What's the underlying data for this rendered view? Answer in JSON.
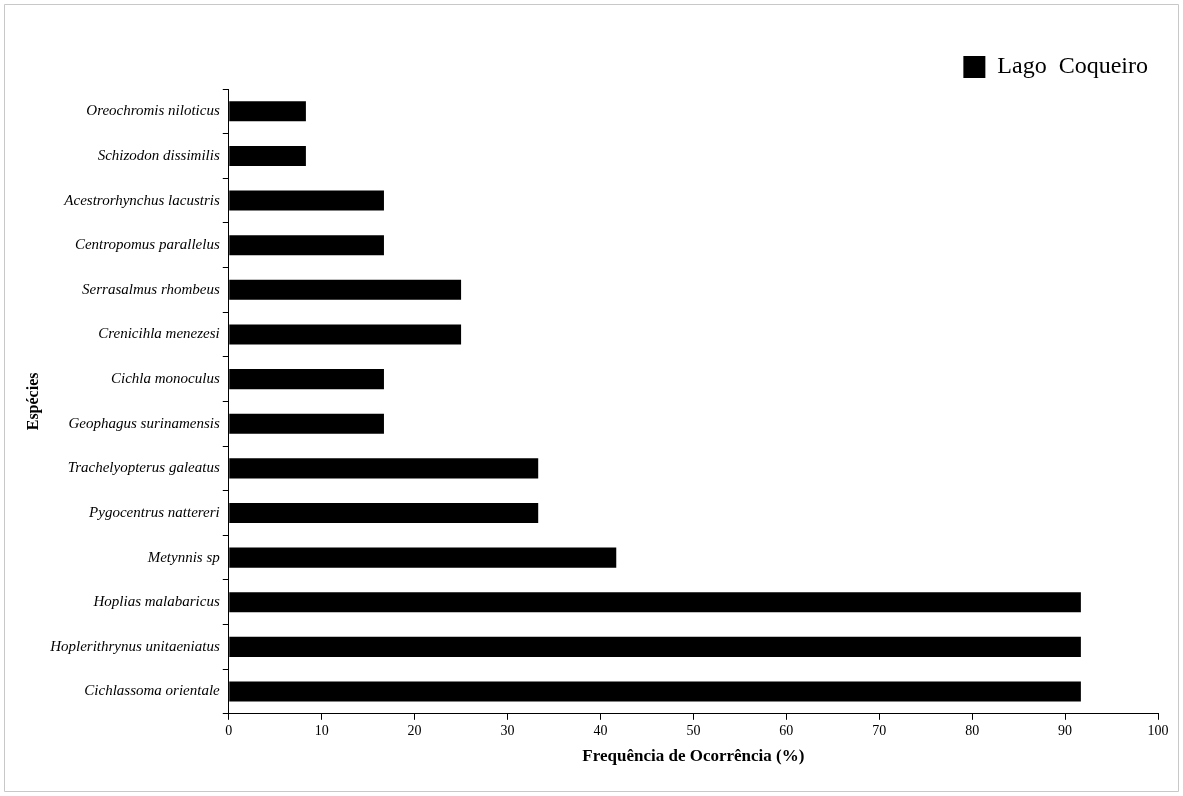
{
  "chart_data": {
    "type": "bar",
    "orientation": "horizontal",
    "categories": [
      "Oreochromis niloticus",
      "Schizodon dissimilis",
      "Acestrorhynchus lacustris",
      "Centropomus parallelus",
      "Serrasalmus rhombeus",
      "Crenicihla menezesi",
      "Cichla monoculus",
      "Geophagus surinamensis",
      "Trachelyopterus galeatus",
      "Pygocentrus nattereri",
      "Metynnis sp",
      "Hoplias malabaricus",
      "Hoplerithrynus unitaeniatus",
      "Cichlassoma orientale"
    ],
    "series": [
      {
        "name": "Lago  Coqueiro",
        "color": "#000000",
        "values": [
          8.3,
          8.3,
          16.7,
          16.7,
          25,
          25,
          16.7,
          16.7,
          33.3,
          33.3,
          41.7,
          91.7,
          91.7,
          91.7
        ]
      }
    ],
    "xlim": [
      0,
      100
    ],
    "xticks": [
      0,
      10,
      20,
      30,
      40,
      50,
      60,
      70,
      80,
      90,
      100
    ],
    "xlabel": "Frequência de Ocorrência (%)",
    "ylabel": "Espécies",
    "grid": false,
    "legend": "top right"
  }
}
